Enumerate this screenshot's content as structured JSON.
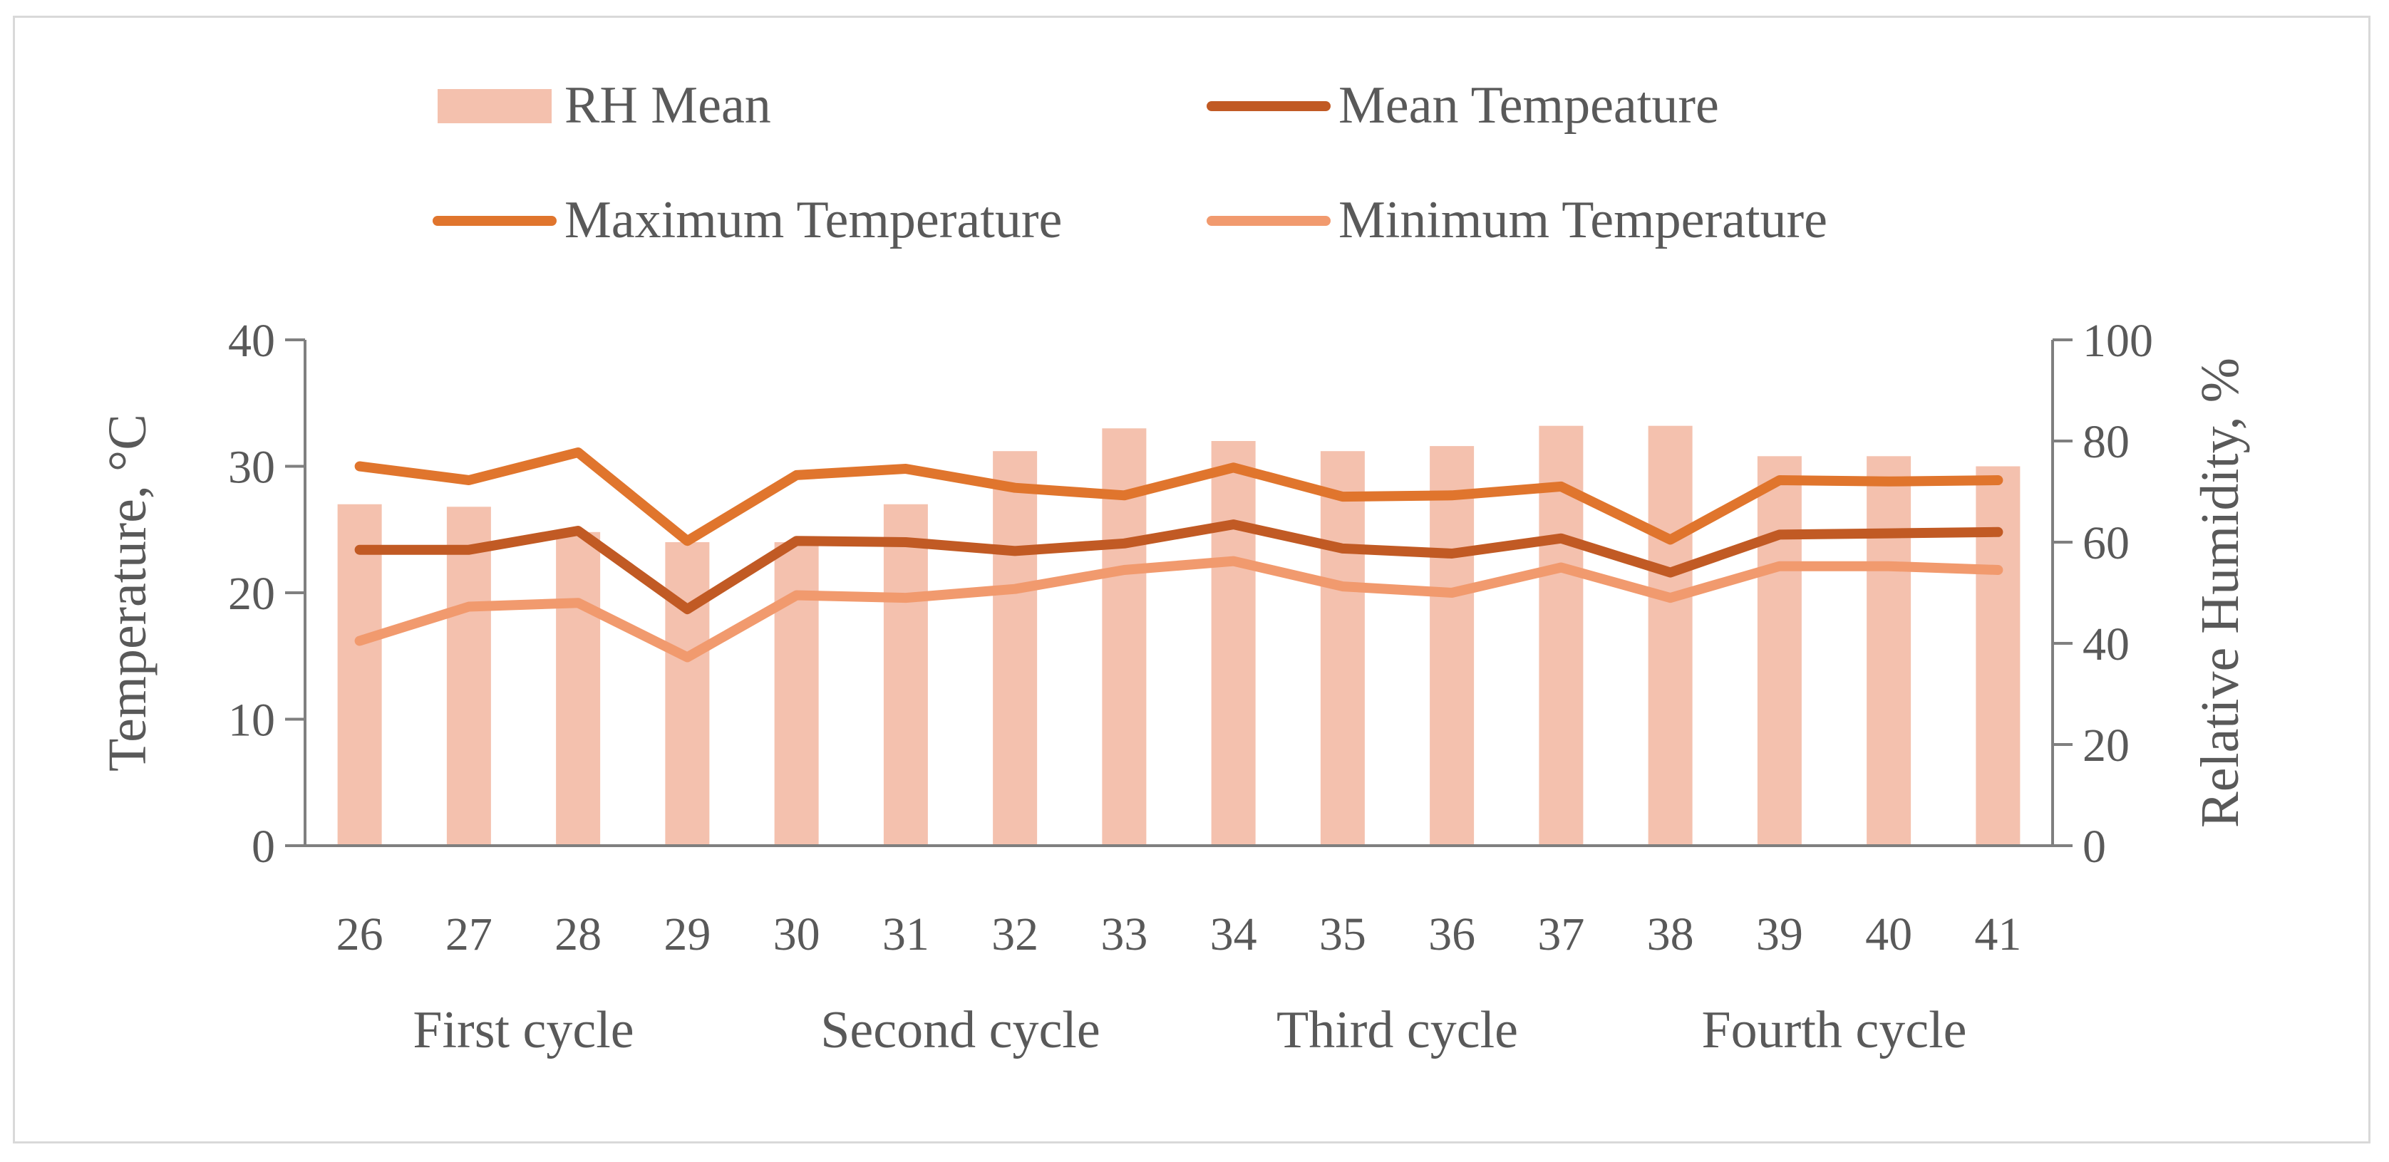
{
  "chart_data": {
    "type": "bar+line",
    "categories": [
      "26",
      "27",
      "28",
      "29",
      "30",
      "31",
      "32",
      "33",
      "34",
      "35",
      "36",
      "37",
      "38",
      "39",
      "40",
      "41"
    ],
    "groups": [
      {
        "label": "First cycle",
        "span": [
          26,
          29
        ]
      },
      {
        "label": "Second cycle",
        "span": [
          30,
          33
        ]
      },
      {
        "label": "Third cycle",
        "span": [
          34,
          37
        ]
      },
      {
        "label": "Fourth cycle",
        "span": [
          38,
          41
        ]
      }
    ],
    "series": [
      {
        "name": "RH Mean",
        "type": "bar",
        "axis": "right",
        "color": "#f4c1ae",
        "values": [
          67.5,
          67,
          62,
          60,
          60,
          67.5,
          78,
          82.5,
          80,
          78,
          79,
          83,
          83,
          77,
          77,
          75
        ]
      },
      {
        "name": "Mean Tempeature",
        "type": "line",
        "axis": "left",
        "color": "#c15a24",
        "values": [
          23.4,
          23.4,
          24.9,
          18.7,
          24.1,
          24.0,
          23.3,
          23.9,
          25.4,
          23.5,
          23.1,
          24.3,
          21.6,
          24.6,
          24.7,
          24.8
        ]
      },
      {
        "name": "Maximum Temperature",
        "type": "line",
        "axis": "left",
        "color": "#e0752d",
        "values": [
          30.0,
          28.9,
          31.1,
          24.1,
          29.3,
          29.8,
          28.3,
          27.7,
          29.9,
          27.6,
          27.7,
          28.4,
          24.2,
          28.9,
          28.8,
          28.9
        ]
      },
      {
        "name": "Minimum Temperature",
        "type": "line",
        "axis": "left",
        "color": "#f19a6e",
        "values": [
          16.2,
          18.9,
          19.2,
          14.9,
          19.8,
          19.6,
          20.3,
          21.8,
          22.5,
          20.5,
          20.0,
          22.0,
          19.6,
          22.1,
          22.1,
          21.8
        ]
      }
    ],
    "y_left": {
      "label": "Temperature, °C",
      "range": [
        0,
        40
      ],
      "ticks": [
        "0",
        "10",
        "20",
        "30",
        "40"
      ]
    },
    "y_right": {
      "label": "Relative Humidity, %",
      "range": [
        0,
        100
      ],
      "ticks": [
        "0",
        "20",
        "40",
        "60",
        "80",
        "100"
      ]
    },
    "legend": {
      "placement": "top",
      "columns": 2
    },
    "grid": false
  }
}
